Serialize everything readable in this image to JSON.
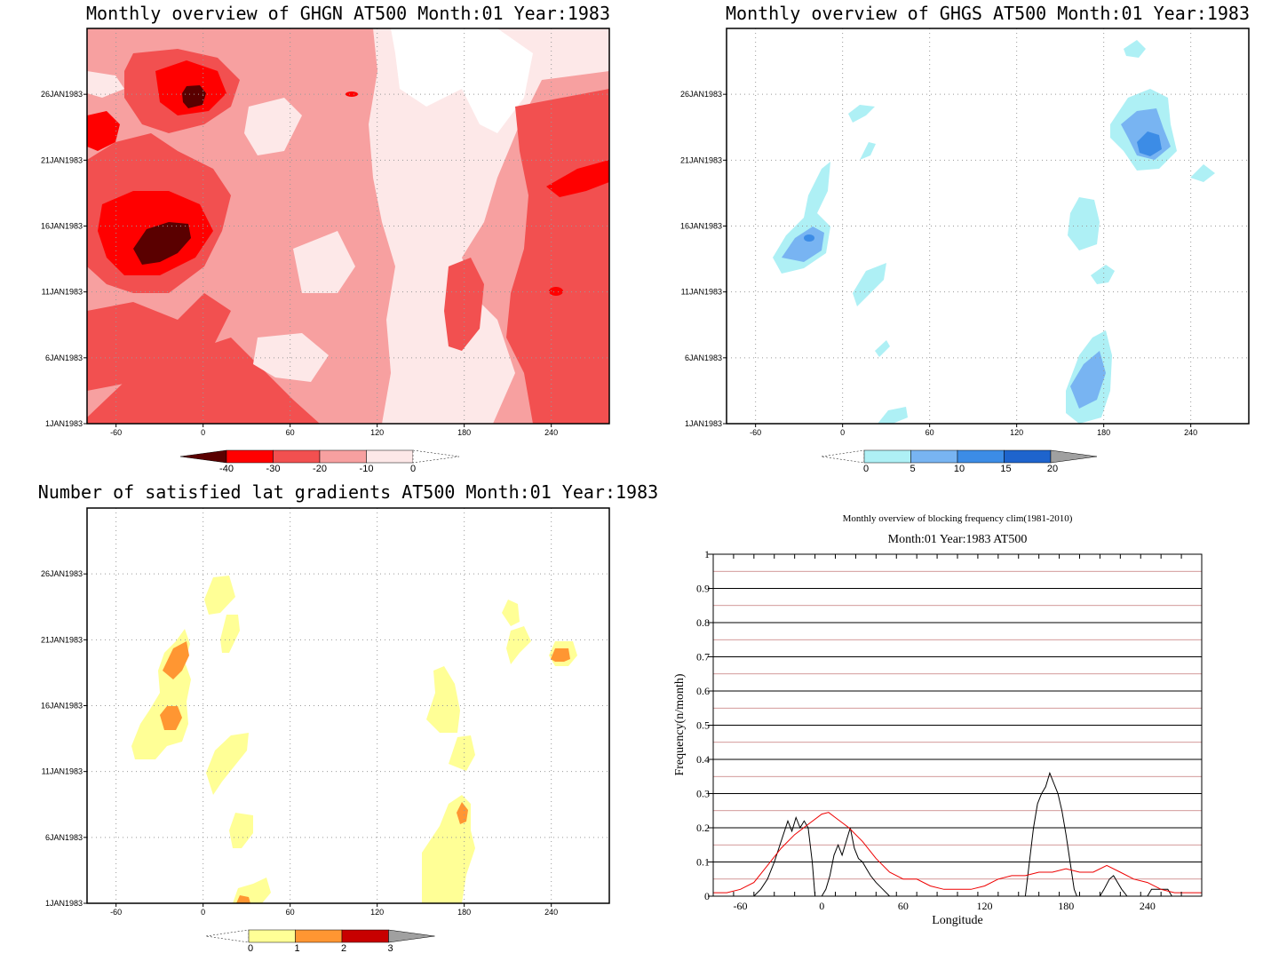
{
  "chart_data": [
    {
      "type": "heatmap",
      "title": "Monthly overview of GHGN AT500 Month:01 Year:1983",
      "x_ticks": [
        "-60",
        "0",
        "60",
        "120",
        "180",
        "240"
      ],
      "y_ticks": [
        "1JAN1983",
        "6JAN1983",
        "11JAN1983",
        "16JAN1983",
        "21JAN1983",
        "26JAN1983"
      ],
      "colorbar": {
        "labels": [
          "-40",
          "-30",
          "-20",
          "-10",
          "0"
        ],
        "colors": [
          "#5a0000",
          "#ff0000",
          "#f25050",
          "#f7a0a0",
          "#fde8e8"
        ]
      }
    },
    {
      "type": "heatmap",
      "title": "Monthly overview of GHGS AT500 Month:01 Year:1983",
      "x_ticks": [
        "-60",
        "0",
        "60",
        "120",
        "180",
        "240"
      ],
      "y_ticks": [
        "1JAN1983",
        "6JAN1983",
        "11JAN1983",
        "16JAN1983",
        "21JAN1983",
        "26JAN1983"
      ],
      "colorbar": {
        "labels": [
          "0",
          "5",
          "10",
          "15",
          "20"
        ],
        "colors": [
          "#aef0f5",
          "#78b4f2",
          "#3c8ce6",
          "#1e64cd"
        ]
      }
    },
    {
      "type": "heatmap",
      "title": "Number of satisfied lat gradients AT500 Month:01 Year:1983",
      "x_ticks": [
        "-60",
        "0",
        "60",
        "120",
        "180",
        "240"
      ],
      "y_ticks": [
        "1JAN1983",
        "6JAN1983",
        "11JAN1983",
        "16JAN1983",
        "21JAN1983",
        "26JAN1983"
      ],
      "colorbar": {
        "labels": [
          "0",
          "1",
          "2",
          "3"
        ],
        "colors": [
          "#ffff96",
          "#ff9632",
          "#c80000"
        ]
      }
    },
    {
      "type": "line",
      "title": "Monthly overview of blocking frequency clim(1981-2010)",
      "subtitle": "Month:01 Year:1983  AT500",
      "xlabel": "Longitude",
      "ylabel": "Frequency(n/month)",
      "x_ticks": [
        "-60",
        "0",
        "60",
        "120",
        "180",
        "240"
      ],
      "y_ticks": [
        "0",
        "0.1",
        "0.2",
        "0.3",
        "0.4",
        "0.5",
        "0.6",
        "0.7",
        "0.8",
        "0.9",
        "1"
      ],
      "xlim": [
        -80,
        280
      ],
      "ylim": [
        0,
        1
      ],
      "series": [
        {
          "color": "#000000",
          "points": [
            [
              -80,
              0
            ],
            [
              -50,
              0
            ],
            [
              -45,
              0.02
            ],
            [
              -40,
              0.05
            ],
            [
              -35,
              0.1
            ],
            [
              -30,
              0.16
            ],
            [
              -25,
              0.22
            ],
            [
              -22,
              0.19
            ],
            [
              -19,
              0.23
            ],
            [
              -16,
              0.2
            ],
            [
              -13,
              0.22
            ],
            [
              -10,
              0.2
            ],
            [
              -7,
              0.1
            ],
            [
              -5,
              0
            ],
            [
              0,
              0
            ],
            [
              3,
              0.02
            ],
            [
              6,
              0.06
            ],
            [
              9,
              0.12
            ],
            [
              12,
              0.15
            ],
            [
              15,
              0.12
            ],
            [
              18,
              0.16
            ],
            [
              21,
              0.2
            ],
            [
              24,
              0.14
            ],
            [
              27,
              0.11
            ],
            [
              30,
              0.1
            ],
            [
              33,
              0.08
            ],
            [
              36,
              0.06
            ],
            [
              40,
              0.04
            ],
            [
              45,
              0.02
            ],
            [
              50,
              0
            ],
            [
              150,
              0
            ],
            [
              153,
              0.1
            ],
            [
              156,
              0.2
            ],
            [
              159,
              0.27
            ],
            [
              162,
              0.3
            ],
            [
              165,
              0.32
            ],
            [
              168,
              0.36
            ],
            [
              171,
              0.33
            ],
            [
              174,
              0.3
            ],
            [
              177,
              0.25
            ],
            [
              180,
              0.18
            ],
            [
              183,
              0.1
            ],
            [
              186,
              0.02
            ],
            [
              188,
              0
            ],
            [
              205,
              0
            ],
            [
              208,
              0.02
            ],
            [
              212,
              0.05
            ],
            [
              215,
              0.06
            ],
            [
              218,
              0.04
            ],
            [
              221,
              0.02
            ],
            [
              225,
              0
            ],
            [
              240,
              0
            ],
            [
              243,
              0.02
            ],
            [
              250,
              0.02
            ],
            [
              255,
              0.02
            ],
            [
              258,
              0
            ],
            [
              280,
              0
            ]
          ]
        },
        {
          "color": "#ee0000",
          "points": [
            [
              -80,
              0.01
            ],
            [
              -70,
              0.01
            ],
            [
              -60,
              0.02
            ],
            [
              -50,
              0.04
            ],
            [
              -40,
              0.09
            ],
            [
              -30,
              0.14
            ],
            [
              -20,
              0.18
            ],
            [
              -10,
              0.21
            ],
            [
              0,
              0.24
            ],
            [
              5,
              0.245
            ],
            [
              10,
              0.23
            ],
            [
              20,
              0.2
            ],
            [
              30,
              0.16
            ],
            [
              40,
              0.11
            ],
            [
              50,
              0.07
            ],
            [
              60,
              0.05
            ],
            [
              70,
              0.05
            ],
            [
              80,
              0.03
            ],
            [
              90,
              0.02
            ],
            [
              100,
              0.02
            ],
            [
              110,
              0.02
            ],
            [
              120,
              0.03
            ],
            [
              130,
              0.05
            ],
            [
              140,
              0.06
            ],
            [
              150,
              0.06
            ],
            [
              160,
              0.07
            ],
            [
              170,
              0.07
            ],
            [
              180,
              0.08
            ],
            [
              190,
              0.07
            ],
            [
              200,
              0.07
            ],
            [
              210,
              0.09
            ],
            [
              220,
              0.07
            ],
            [
              230,
              0.05
            ],
            [
              240,
              0.04
            ],
            [
              250,
              0.02
            ],
            [
              260,
              0.01
            ],
            [
              270,
              0.01
            ],
            [
              280,
              0.01
            ]
          ]
        }
      ]
    }
  ]
}
